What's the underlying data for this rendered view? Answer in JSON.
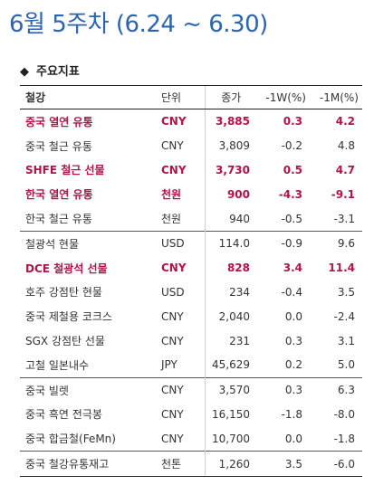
{
  "title": "6월 5주차 (6.24 ~ 6.30)",
  "section": {
    "icon": "diamond-icon",
    "label": "주요지표"
  },
  "colors": {
    "title": "#2b64b0",
    "highlight": "#b0134a"
  },
  "headers": [
    "철강",
    "단위",
    "종가",
    "-1W(%)",
    "-1M(%)"
  ],
  "rows": [
    {
      "name": "중국 열연 유통",
      "unit": "CNY",
      "close": "3,885",
      "w1": "0.3",
      "m1": "4.2",
      "hl": true,
      "sep": false
    },
    {
      "name": "중국 철근 유통",
      "unit": "CNY",
      "close": "3,809",
      "w1": "-0.2",
      "m1": "4.8",
      "hl": false,
      "sep": false
    },
    {
      "name": "SHFE 철근 선물",
      "unit": "CNY",
      "close": "3,730",
      "w1": "0.5",
      "m1": "4.7",
      "hl": true,
      "sep": false
    },
    {
      "name": "한국 열연 유통",
      "unit": "천원",
      "close": "900",
      "w1": "-4.3",
      "m1": "-9.1",
      "hl": true,
      "sep": false
    },
    {
      "name": "한국 철근 유통",
      "unit": "천원",
      "close": "940",
      "w1": "-0.5",
      "m1": "-3.1",
      "hl": false,
      "sep": false
    },
    {
      "name": "철광석 현물",
      "unit": "USD",
      "close": "114.0",
      "w1": "-0.9",
      "m1": "9.6",
      "hl": false,
      "sep": true
    },
    {
      "name": "DCE 철광석 선물",
      "unit": "CNY",
      "close": "828",
      "w1": "3.4",
      "m1": "11.4",
      "hl": true,
      "sep": false
    },
    {
      "name": "호주 강점탄 현물",
      "unit": "USD",
      "close": "234",
      "w1": "-0.4",
      "m1": "3.5",
      "hl": false,
      "sep": false
    },
    {
      "name": "중국 제철용 코크스",
      "unit": "CNY",
      "close": "2,040",
      "w1": "0.0",
      "m1": "-2.4",
      "hl": false,
      "sep": false
    },
    {
      "name": "SGX 강점탄 선물",
      "unit": "CNY",
      "close": "231",
      "w1": "0.3",
      "m1": "3.1",
      "hl": false,
      "sep": false
    },
    {
      "name": "고철 일본내수",
      "unit": "JPY",
      "close": "45,629",
      "w1": "0.2",
      "m1": "5.0",
      "hl": false,
      "sep": false
    },
    {
      "name": "중국 빌렛",
      "unit": "CNY",
      "close": "3,570",
      "w1": "0.3",
      "m1": "6.3",
      "hl": false,
      "sep": true
    },
    {
      "name": "중국 흑연 전극봉",
      "unit": "CNY",
      "close": "16,150",
      "w1": "-1.8",
      "m1": "-8.0",
      "hl": false,
      "sep": false
    },
    {
      "name": "중국 합금철(FeMn)",
      "unit": "CNY",
      "close": "10,700",
      "w1": "0.0",
      "m1": "-1.8",
      "hl": false,
      "sep": false
    },
    {
      "name": "중국 철강유통재고",
      "unit": "천톤",
      "close": "1,260",
      "w1": "3.5",
      "m1": "-6.0",
      "hl": false,
      "sep": true
    }
  ]
}
